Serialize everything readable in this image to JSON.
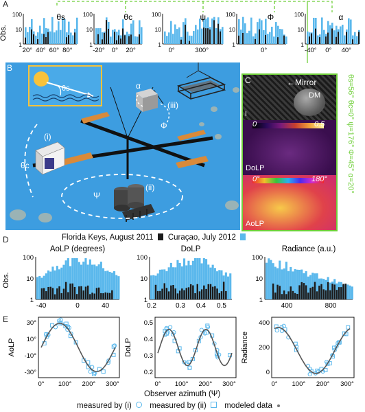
{
  "figure": {
    "panel_letters": [
      "A",
      "B",
      "C",
      "D",
      "E"
    ],
    "colors": {
      "florida": "#1b1b1b",
      "curacao": "#5bb8ec",
      "scene_bg": "#3d9de0",
      "green": "#6fcf3a",
      "sun": "#f8c23a",
      "orange": "#d98a3a",
      "dolp_bg": "#4b1a5c",
      "aolp_bg": "#e0424a"
    }
  },
  "panelA": {
    "ylabel": "Obs.",
    "panels": [
      {
        "title": "θs",
        "yticks": [
          "100",
          "10",
          "1"
        ],
        "xticks": [
          "20°",
          "40°",
          "60°",
          "80°"
        ]
      },
      {
        "title": "θc",
        "yticks": [
          "100",
          "10",
          "1"
        ],
        "xticks": [
          "-20°",
          "0°",
          "20°"
        ]
      },
      {
        "title": "ψ",
        "yticks": [
          "100",
          "10",
          "1"
        ],
        "xticks": [
          "0°",
          "300°"
        ]
      },
      {
        "title": "Φ",
        "yticks": [
          "100",
          "10",
          "1"
        ],
        "xticks": [
          "0°"
        ]
      },
      {
        "title": "α",
        "yticks": [
          "100",
          "10",
          "1"
        ],
        "xticks": [
          "-40°",
          "0°",
          "40°"
        ]
      }
    ]
  },
  "panelB": {
    "labels": {
      "theta_s": "θs",
      "theta_c": "θc",
      "psi": "Ψ",
      "phi": "Φ",
      "alpha": "α",
      "i": "(i)",
      "ii": "(ii)",
      "iii": "(iii)"
    }
  },
  "panelC": {
    "mirror": "←Mirror",
    "dm": "DM",
    "i_label": "I",
    "dolp_label": "DoLP",
    "dolp_min": "0",
    "dolp_max": "0.5",
    "aolp_label": "AoLP",
    "aolp_min": "0°",
    "aolp_max": "180°",
    "side_text": "θs=56° θc=0° ψ=176° Φ=45° α=20°"
  },
  "panelD": {
    "legend": {
      "florida": "Florida Keys, August 2011",
      "curacao": "Curaçao, July 2012"
    },
    "ylabel": "Obs.",
    "panels": [
      {
        "title": "AoLP (degrees)",
        "yticks": [
          "100",
          "10",
          "1"
        ],
        "xticks": [
          "-40",
          "0",
          "40"
        ]
      },
      {
        "title": "DoLP",
        "yticks": [
          "100",
          "10",
          "1"
        ],
        "xticks": [
          "0.2",
          "0.3",
          "0.4",
          "0.5"
        ]
      },
      {
        "title": "Radiance (a.u.)",
        "yticks": [
          "100",
          "10",
          "1"
        ],
        "xticks": [
          "400",
          "800"
        ]
      }
    ]
  },
  "panelE": {
    "xlabel": "Observer azimuth (Ψ)",
    "panels": [
      {
        "ylabel": "AoLP",
        "yticks": [
          "30°",
          "10°",
          "-10°",
          "-30°"
        ],
        "xticks": [
          "0°",
          "100°",
          "200°",
          "300°"
        ]
      },
      {
        "ylabel": "DoLP",
        "yticks": [
          "0.5",
          "0.4",
          "0.3",
          "0.2"
        ],
        "xticks": [
          "0°",
          "100°",
          "200°",
          "300°"
        ]
      },
      {
        "ylabel": "Radiance",
        "yticks": [
          "400",
          "200",
          "0"
        ],
        "xticks": [
          "0°",
          "100°",
          "200°",
          "300°"
        ]
      }
    ],
    "legend": {
      "measured_i": "measured by (i)",
      "measured_ii": "measured by (ii)",
      "modeled": "modeled data"
    }
  }
}
